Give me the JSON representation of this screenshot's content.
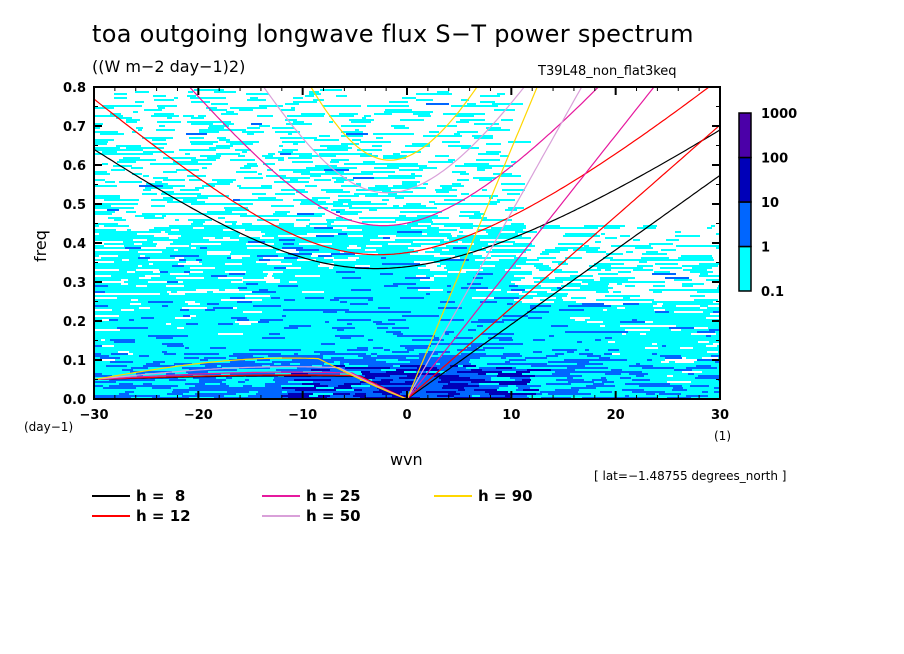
{
  "header": {
    "title": "toa outgoing longwave flux S−T power spectrum",
    "units": "((W m−2 day−1)2)",
    "experiment": "T39L48_non_flat3keq"
  },
  "footer": {
    "lat_note": "[ lat=−1.48755 degrees_north ]"
  },
  "chart_data": {
    "type": "heatmap",
    "title": "toa outgoing longwave flux S−T power spectrum",
    "xlabel": "wvn",
    "ylabel": "freq",
    "x_units": "(1)",
    "y_units": "(day−1)",
    "xlim": [
      -30,
      30
    ],
    "ylim": [
      0.0,
      0.8
    ],
    "x_ticks": [
      -30,
      -20,
      -10,
      0,
      10,
      20,
      30
    ],
    "x_tick_labels": [
      "−30",
      "−20",
      "−10",
      "0",
      "10",
      "20",
      "30"
    ],
    "y_ticks": [
      0.0,
      0.1,
      0.2,
      0.3,
      0.4,
      0.5,
      0.6,
      0.7,
      0.8
    ],
    "y_tick_labels": [
      "0.0",
      "0.1",
      "0.2",
      "0.3",
      "0.4",
      "0.5",
      "0.6",
      "0.7",
      "0.8"
    ],
    "colorbar": {
      "levels": [
        0.1,
        1,
        10,
        100,
        1000
      ],
      "level_labels": [
        "0.1",
        "1",
        "10",
        "100",
        "1000"
      ],
      "colors": [
        "#00ffff",
        "#0066ff",
        "#0000b8",
        "#4b00a8"
      ]
    },
    "dispersion_curves": {
      "legend_position": "bottom-left",
      "series": [
        {
          "name": "h =  8",
          "h": 8,
          "color": "#000000"
        },
        {
          "name": "h = 12",
          "h": 12,
          "color": "#ff0000"
        },
        {
          "name": "h = 25",
          "h": 25,
          "color": "#e6199e"
        },
        {
          "name": "h = 50",
          "h": 50,
          "color": "#d9a0d9"
        },
        {
          "name": "h = 90",
          "h": 90,
          "color": "#ffd700"
        }
      ]
    }
  }
}
